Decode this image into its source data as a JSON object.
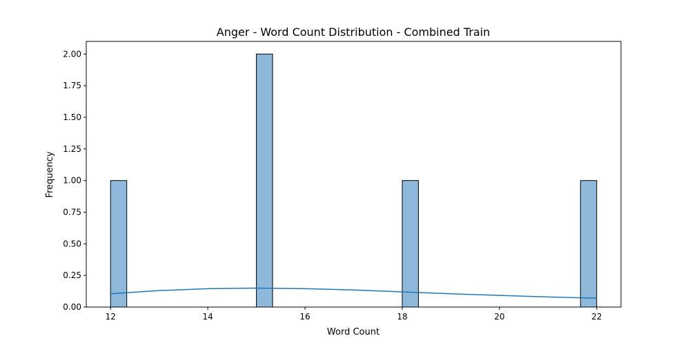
{
  "chart_data": {
    "type": "bar",
    "title": "Anger - Word Count Distribution - Combined Train",
    "xlabel": "Word Count",
    "ylabel": "Frequency",
    "xlim": [
      11.5,
      22.5
    ],
    "ylim": [
      0,
      2.1
    ],
    "xticks": [
      12,
      14,
      16,
      18,
      20,
      22
    ],
    "xtick_labels": [
      "12",
      "14",
      "16",
      "18",
      "20",
      "22"
    ],
    "yticks": [
      0,
      0.25,
      0.5,
      0.75,
      1.0,
      1.25,
      1.5,
      1.75,
      2.0
    ],
    "ytick_labels": [
      "0.00",
      "0.25",
      "0.50",
      "0.75",
      "1.00",
      "1.25",
      "1.50",
      "1.75",
      "2.00"
    ],
    "grid": false,
    "bar_width": 0.333,
    "bars": [
      {
        "x_start": 12.0,
        "value": 1
      },
      {
        "x_start": 15.0,
        "value": 2
      },
      {
        "x_start": 18.0,
        "value": 1
      },
      {
        "x_start": 21.667,
        "value": 1
      }
    ],
    "kde_line": {
      "x": [
        12,
        13,
        14,
        15,
        16,
        17,
        18,
        19,
        20,
        21,
        22
      ],
      "y": [
        0.105,
        0.13,
        0.145,
        0.15,
        0.145,
        0.135,
        0.12,
        0.105,
        0.092,
        0.08,
        0.07
      ]
    },
    "colors": {
      "bar_fill": "#8fb9da",
      "bar_edge": "#000000",
      "kde_line": "#1f77b4"
    }
  }
}
